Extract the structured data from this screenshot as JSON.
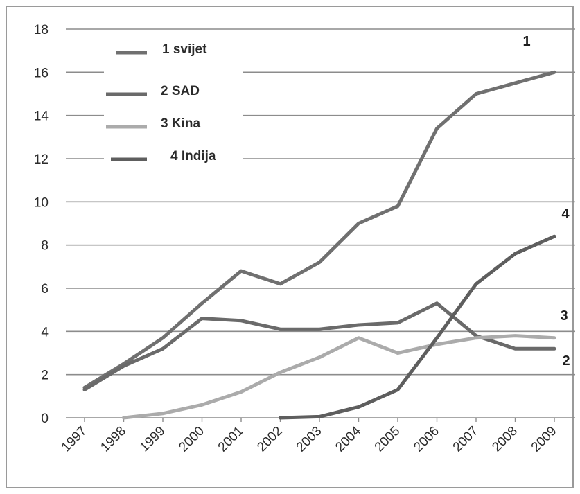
{
  "chart_data": {
    "type": "line",
    "categories": [
      "1997",
      "1998",
      "1999",
      "2000",
      "2001",
      "2002",
      "2003",
      "2004",
      "2005",
      "2006",
      "2007",
      "2008",
      "2009"
    ],
    "ylim": [
      0,
      18
    ],
    "yticks": [
      0,
      2,
      4,
      6,
      8,
      10,
      12,
      14,
      16,
      18
    ],
    "grid": true,
    "legend_position": "top-left",
    "series": [
      {
        "name": "1 svijet",
        "end_label": "1",
        "color": "#707070",
        "values": [
          1.4,
          2.5,
          3.7,
          5.3,
          6.8,
          6.2,
          7.2,
          9.0,
          9.8,
          13.4,
          15.0,
          15.5,
          16.0
        ]
      },
      {
        "name": "2 SAD",
        "end_label": "2",
        "color": "#6a6a6a",
        "values": [
          1.3,
          2.4,
          3.2,
          4.6,
          4.5,
          4.1,
          4.1,
          4.3,
          4.4,
          5.3,
          3.8,
          3.2,
          3.2
        ]
      },
      {
        "name": "3 Kina",
        "end_label": "3",
        "color": "#ababab",
        "values": [
          null,
          0.0,
          0.2,
          0.6,
          1.2,
          2.1,
          2.8,
          3.7,
          3.0,
          3.4,
          3.7,
          3.8,
          3.7
        ]
      },
      {
        "name": "4 Indija",
        "end_label": "4",
        "color": "#5e5e5e",
        "values": [
          null,
          null,
          null,
          null,
          null,
          0.0,
          0.05,
          0.5,
          1.3,
          3.7,
          6.2,
          7.6,
          8.4
        ]
      }
    ]
  }
}
